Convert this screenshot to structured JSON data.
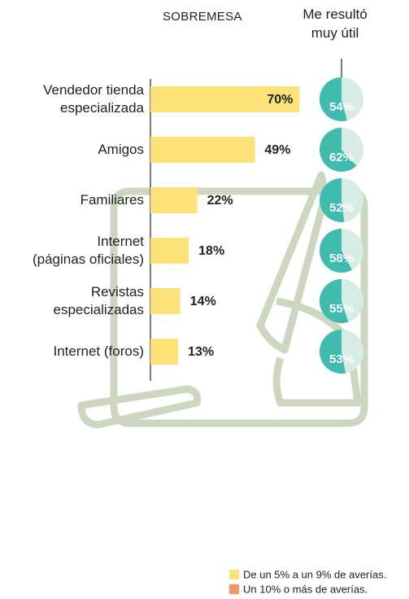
{
  "chart_data": {
    "type": "bar",
    "title": "SOBREMESA",
    "subtitle": "Me resultó\nmuy útil",
    "categories": [
      "Vendedor tienda\nespecializada",
      "Amigos",
      "Familiares",
      "Internet\n(páginas oficiales)",
      "Revistas\nespecializadas",
      "Internet (foros)"
    ],
    "values": [
      70,
      49,
      22,
      18,
      14,
      13
    ],
    "value_labels": [
      "70%",
      "49%",
      "22%",
      "18%",
      "14%",
      "13%"
    ],
    "color": "#fde27a",
    "pies": {
      "values": [
        54,
        62,
        52,
        58,
        55,
        53
      ],
      "value_labels": [
        "54%",
        "62%",
        "52%",
        "58%",
        "55%",
        "53%"
      ],
      "color": "#3fbcae",
      "rest_color": "#d6ece5"
    },
    "legend": [
      {
        "label": "De un 5% a un 9% de averías.",
        "color": "#fde27a"
      },
      {
        "label": "Un 10% o más de averías.",
        "color": "#f4956a"
      }
    ]
  }
}
